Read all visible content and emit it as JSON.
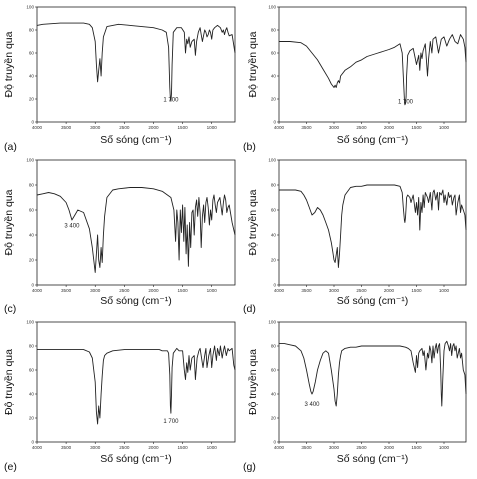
{
  "chart_data": [
    {
      "type": "line",
      "panel_label": "(a)",
      "ylabel": "Độ truyền qua",
      "xlabel": "Số sóng (cm⁻¹)",
      "ylim": [
        0,
        100
      ],
      "yticks": [
        "0",
        "20",
        "40",
        "60",
        "80",
        "100"
      ],
      "xlim": [
        4000,
        600
      ],
      "xticks": [
        "4000",
        "3500",
        "3000",
        "2500",
        "2000",
        "1500",
        "1000"
      ],
      "annotations": [
        {
          "text": "1 700",
          "x": 1700,
          "y": 18
        }
      ],
      "x": [
        4000,
        3900,
        3600,
        3200,
        3100,
        3050,
        3000,
        2980,
        2960,
        2940,
        2920,
        2900,
        2880,
        2860,
        2800,
        2600,
        2400,
        2200,
        2000,
        1850,
        1780,
        1740,
        1720,
        1710,
        1700,
        1690,
        1680,
        1660,
        1600,
        1520,
        1470,
        1450,
        1430,
        1410,
        1390,
        1370,
        1340,
        1300,
        1280,
        1260,
        1230,
        1200,
        1180,
        1160,
        1120,
        1100,
        1080,
        1060,
        1040,
        1020,
        1000,
        980,
        950,
        900,
        850,
        820,
        800,
        780,
        760,
        740,
        720,
        700,
        650,
        600
      ],
      "y": [
        84,
        85,
        86,
        86,
        85,
        82,
        70,
        50,
        35,
        45,
        55,
        40,
        60,
        74,
        83,
        85,
        84,
        83,
        82,
        80,
        78,
        65,
        30,
        20,
        18,
        25,
        50,
        78,
        82,
        82,
        78,
        60,
        72,
        68,
        74,
        65,
        70,
        72,
        58,
        70,
        78,
        82,
        76,
        70,
        80,
        78,
        74,
        76,
        80,
        78,
        72,
        80,
        82,
        84,
        82,
        78,
        80,
        76,
        80,
        82,
        78,
        75,
        76,
        60
      ]
    },
    {
      "type": "line",
      "panel_label": "(b)",
      "ylabel": "Độ truyền qua",
      "xlabel": "Số sóng (cm⁻¹)",
      "ylim": [
        0,
        100
      ],
      "yticks": [
        "0",
        "20",
        "40",
        "60",
        "80",
        "100"
      ],
      "xlim": [
        4000,
        600
      ],
      "xticks": [
        "4000",
        "3500",
        "3000",
        "2500",
        "2000",
        "1500",
        "1000"
      ],
      "annotations": [
        {
          "text": "1 700",
          "x": 1700,
          "y": 16
        }
      ],
      "x": [
        4000,
        3800,
        3600,
        3500,
        3400,
        3300,
        3200,
        3100,
        3050,
        3000,
        2980,
        2960,
        2940,
        2920,
        2900,
        2880,
        2800,
        2700,
        2600,
        2500,
        2400,
        2200,
        2000,
        1900,
        1800,
        1760,
        1740,
        1720,
        1710,
        1700,
        1690,
        1680,
        1660,
        1620,
        1560,
        1500,
        1460,
        1440,
        1420,
        1400,
        1380,
        1340,
        1300,
        1280,
        1250,
        1220,
        1200,
        1150,
        1100,
        1050,
        1000,
        950,
        900,
        850,
        800,
        750,
        700,
        650,
        620,
        600
      ],
      "y": [
        70,
        70,
        69,
        66,
        60,
        54,
        46,
        38,
        33,
        30,
        32,
        30,
        34,
        36,
        34,
        40,
        45,
        48,
        52,
        54,
        57,
        60,
        63,
        65,
        68,
        60,
        40,
        20,
        15,
        16,
        22,
        40,
        58,
        62,
        64,
        50,
        58,
        45,
        60,
        55,
        62,
        68,
        40,
        55,
        70,
        60,
        72,
        74,
        60,
        72,
        74,
        66,
        72,
        76,
        70,
        68,
        76,
        72,
        65,
        52
      ]
    },
    {
      "type": "line",
      "panel_label": "(c)",
      "ylabel": "Độ truyền qua",
      "xlabel": "Số sóng (cm⁻¹)",
      "ylim": [
        0,
        100
      ],
      "yticks": [
        "0",
        "20",
        "40",
        "60",
        "80",
        "100"
      ],
      "xlim": [
        4000,
        600
      ],
      "xticks": [
        "4000",
        "3500",
        "3000",
        "2500",
        "2000",
        "1500",
        "1000"
      ],
      "annotations": [
        {
          "text": "3 400",
          "x": 3400,
          "y": 46
        }
      ],
      "x": [
        4000,
        3900,
        3800,
        3700,
        3600,
        3500,
        3450,
        3400,
        3350,
        3300,
        3200,
        3100,
        3050,
        3000,
        2980,
        2960,
        2940,
        2920,
        2900,
        2880,
        2860,
        2840,
        2800,
        2700,
        2600,
        2400,
        2200,
        2000,
        1850,
        1700,
        1650,
        1620,
        1600,
        1580,
        1560,
        1540,
        1520,
        1500,
        1480,
        1460,
        1440,
        1420,
        1400,
        1380,
        1360,
        1340,
        1320,
        1300,
        1280,
        1260,
        1240,
        1220,
        1200,
        1180,
        1160,
        1140,
        1120,
        1100,
        1080,
        1060,
        1040,
        1020,
        1000,
        980,
        960,
        940,
        920,
        900,
        860,
        820,
        800,
        780,
        760,
        740,
        720,
        700,
        650,
        600
      ],
      "y": [
        72,
        73,
        74,
        73,
        71,
        66,
        60,
        52,
        56,
        60,
        58,
        45,
        30,
        10,
        25,
        40,
        20,
        14,
        30,
        18,
        40,
        55,
        70,
        76,
        77,
        78,
        78,
        77,
        75,
        70,
        60,
        35,
        60,
        50,
        20,
        60,
        42,
        64,
        35,
        62,
        25,
        48,
        15,
        50,
        30,
        58,
        60,
        40,
        62,
        68,
        55,
        70,
        58,
        30,
        55,
        64,
        50,
        66,
        70,
        62,
        48,
        60,
        52,
        68,
        72,
        64,
        58,
        66,
        70,
        56,
        66,
        72,
        68,
        58,
        62,
        64,
        50,
        40
      ]
    },
    {
      "type": "line",
      "panel_label": "(d)",
      "ylabel": "Độ truyền qua",
      "xlabel": "Số sóng (cm⁻¹)",
      "ylim": [
        0,
        100
      ],
      "yticks": [
        "0",
        "20",
        "40",
        "60",
        "80",
        "100"
      ],
      "xlim": [
        4000,
        600
      ],
      "xticks": [
        "4000",
        "3500",
        "3000",
        "2500",
        "2000",
        "1500",
        "1000"
      ],
      "annotations": [],
      "x": [
        4000,
        3900,
        3800,
        3700,
        3600,
        3550,
        3500,
        3450,
        3400,
        3350,
        3300,
        3250,
        3200,
        3150,
        3100,
        3050,
        3020,
        3000,
        2980,
        2960,
        2940,
        2920,
        2900,
        2880,
        2860,
        2840,
        2800,
        2700,
        2600,
        2500,
        2400,
        2200,
        2000,
        1900,
        1800,
        1760,
        1740,
        1720,
        1710,
        1700,
        1690,
        1680,
        1660,
        1620,
        1600,
        1560,
        1520,
        1500,
        1480,
        1460,
        1440,
        1420,
        1400,
        1380,
        1360,
        1340,
        1300,
        1280,
        1250,
        1220,
        1200,
        1180,
        1150,
        1120,
        1100,
        1080,
        1050,
        1020,
        1000,
        980,
        950,
        920,
        900,
        870,
        850,
        820,
        800,
        780,
        750,
        720,
        700,
        680,
        650,
        620,
        600
      ],
      "y": [
        76,
        76,
        76,
        76,
        75,
        72,
        68,
        62,
        56,
        58,
        62,
        60,
        56,
        50,
        44,
        34,
        26,
        20,
        18,
        24,
        30,
        14,
        25,
        40,
        56,
        64,
        72,
        78,
        79,
        79,
        80,
        80,
        80,
        80,
        79,
        74,
        62,
        52,
        50,
        54,
        62,
        70,
        72,
        70,
        66,
        72,
        58,
        66,
        56,
        70,
        44,
        66,
        58,
        72,
        62,
        74,
        70,
        66,
        74,
        60,
        74,
        76,
        68,
        74,
        60,
        74,
        72,
        76,
        66,
        72,
        64,
        74,
        70,
        72,
        64,
        70,
        72,
        56,
        66,
        72,
        58,
        64,
        60,
        56,
        44
      ]
    },
    {
      "type": "line",
      "panel_label": "(e)",
      "ylabel": "Độ truyền qua",
      "xlabel": "Số sóng (cm⁻¹)",
      "ylim": [
        0,
        100
      ],
      "yticks": [
        "0",
        "20",
        "40",
        "60",
        "80",
        "100"
      ],
      "xlim": [
        4000,
        600
      ],
      "xticks": [
        "4000",
        "3500",
        "3000",
        "2500",
        "2000",
        "1500",
        "1000"
      ],
      "annotations": [
        {
          "text": "1 700",
          "x": 1700,
          "y": 16
        }
      ],
      "x": [
        4000,
        3800,
        3600,
        3400,
        3300,
        3200,
        3100,
        3050,
        3000,
        2980,
        2960,
        2940,
        2920,
        2900,
        2880,
        2860,
        2840,
        2800,
        2700,
        2500,
        2300,
        2100,
        2000,
        1900,
        1850,
        1800,
        1760,
        1740,
        1720,
        1710,
        1700,
        1690,
        1680,
        1660,
        1600,
        1560,
        1500,
        1470,
        1450,
        1430,
        1410,
        1390,
        1370,
        1340,
        1300,
        1280,
        1250,
        1220,
        1200,
        1150,
        1120,
        1100,
        1080,
        1050,
        1020,
        1000,
        980,
        950,
        920,
        900,
        870,
        850,
        820,
        800,
        780,
        750,
        720,
        700,
        650,
        620,
        600
      ],
      "y": [
        77,
        77,
        77,
        77,
        77,
        77,
        75,
        70,
        50,
        25,
        15,
        30,
        20,
        40,
        55,
        68,
        72,
        74,
        76,
        77,
        77,
        77,
        77,
        77,
        76,
        76,
        76,
        74,
        56,
        30,
        24,
        40,
        62,
        74,
        78,
        76,
        76,
        60,
        52,
        66,
        58,
        72,
        60,
        70,
        72,
        52,
        70,
        76,
        78,
        62,
        72,
        78,
        62,
        72,
        78,
        62,
        72,
        80,
        68,
        78,
        72,
        80,
        70,
        76,
        80,
        72,
        78,
        76,
        78,
        64,
        60
      ]
    },
    {
      "type": "line",
      "panel_label": "(g)",
      "ylabel": "Độ truyền qua",
      "xlabel": "Số sóng (cm⁻¹)",
      "ylim": [
        0,
        100
      ],
      "yticks": [
        "0",
        "20",
        "40",
        "60",
        "80",
        "100"
      ],
      "xlim": [
        4000,
        600
      ],
      "xticks": [
        "4000",
        "3500",
        "3000",
        "2500",
        "2000",
        "1500",
        "1000"
      ],
      "annotations": [
        {
          "text": "3 400",
          "x": 3400,
          "y": 30
        }
      ],
      "x": [
        4000,
        3900,
        3800,
        3700,
        3600,
        3550,
        3500,
        3450,
        3420,
        3400,
        3380,
        3340,
        3300,
        3250,
        3200,
        3150,
        3100,
        3050,
        3000,
        2980,
        2960,
        2940,
        2920,
        2900,
        2880,
        2860,
        2800,
        2700,
        2600,
        2500,
        2400,
        2300,
        2200,
        2100,
        2000,
        1900,
        1800,
        1700,
        1650,
        1600,
        1560,
        1520,
        1500,
        1480,
        1460,
        1440,
        1400,
        1380,
        1360,
        1330,
        1300,
        1280,
        1260,
        1240,
        1220,
        1200,
        1180,
        1160,
        1140,
        1120,
        1100,
        1080,
        1060,
        1050,
        1040,
        1020,
        1000,
        980,
        950,
        920,
        900,
        880,
        860,
        840,
        820,
        800,
        780,
        760,
        740,
        720,
        700,
        680,
        650,
        620,
        600
      ],
      "y": [
        82,
        82,
        81,
        80,
        76,
        70,
        60,
        48,
        42,
        40,
        42,
        50,
        60,
        68,
        74,
        76,
        74,
        60,
        44,
        34,
        30,
        40,
        56,
        66,
        72,
        76,
        78,
        79,
        79,
        80,
        80,
        80,
        80,
        80,
        80,
        80,
        80,
        79,
        78,
        76,
        66,
        58,
        72,
        62,
        74,
        76,
        78,
        72,
        76,
        60,
        74,
        70,
        80,
        76,
        66,
        80,
        70,
        78,
        82,
        74,
        80,
        82,
        60,
        40,
        30,
        55,
        76,
        82,
        84,
        80,
        76,
        82,
        72,
        80,
        82,
        76,
        80,
        70,
        74,
        78,
        70,
        74,
        60,
        56,
        40
      ]
    }
  ]
}
